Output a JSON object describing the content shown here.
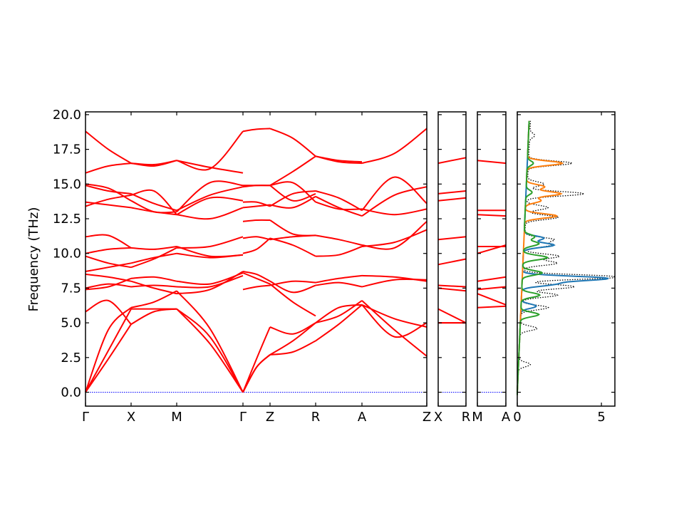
{
  "chart_data": [
    {
      "type": "line",
      "title": "",
      "ylabel": "Frequency (THz)",
      "ylim": [
        -1.0,
        20.2
      ],
      "yticks": [
        "0.0",
        "2.5",
        "5.0",
        "7.5",
        "10.0",
        "12.5",
        "15.0",
        "17.5",
        "20.0"
      ],
      "xticks": [
        "Γ",
        "X",
        "M",
        "Γ",
        "Z",
        "R",
        "A",
        "Z"
      ],
      "segments": [
        {
          "from": "Γ",
          "to": "X",
          "bands": [
            [
              0.0,
              2.4,
              4.9
            ],
            [
              0.0,
              3.0,
              6.0
            ],
            [
              0.0,
              4.5,
              6.1
            ],
            [
              5.8,
              6.6,
              4.9
            ],
            [
              7.5,
              7.8,
              7.6
            ],
            [
              7.4,
              7.6,
              8.2
            ],
            [
              8.5,
              8.3,
              8.0
            ],
            [
              8.7,
              9.0,
              9.3
            ],
            [
              9.8,
              9.3,
              9.0
            ],
            [
              10.0,
              10.3,
              10.4
            ],
            [
              11.2,
              11.3,
              10.4
            ],
            [
              13.4,
              13.9,
              14.2
            ],
            [
              13.7,
              13.5,
              13.3
            ],
            [
              14.9,
              14.5,
              14.3
            ],
            [
              15.0,
              14.7,
              13.8
            ],
            [
              15.8,
              16.3,
              16.5
            ],
            [
              18.8,
              17.5,
              16.5
            ]
          ]
        },
        {
          "from": "X",
          "to": "M",
          "bands": [
            [
              4.9,
              5.8,
              6.0
            ],
            [
              6.0,
              6.0,
              6.0
            ],
            [
              6.1,
              6.5,
              7.3
            ],
            [
              7.6,
              7.7,
              7.6
            ],
            [
              8.2,
              8.3,
              8.0
            ],
            [
              8.0,
              7.5,
              7.1
            ],
            [
              9.3,
              9.7,
              10.0
            ],
            [
              9.0,
              9.6,
              10.4
            ],
            [
              10.4,
              10.3,
              10.5
            ],
            [
              14.2,
              14.5,
              12.8
            ],
            [
              13.3,
              13.0,
              12.8
            ],
            [
              14.3,
              13.6,
              13.1
            ],
            [
              13.8,
              13.0,
              13.0
            ],
            [
              16.5,
              16.3,
              16.7
            ],
            [
              16.5,
              16.4,
              16.7
            ]
          ]
        },
        {
          "from": "M",
          "to": "Γ",
          "bands": [
            [
              6.0,
              4.0,
              0.0
            ],
            [
              6.0,
              3.5,
              0.0
            ],
            [
              7.3,
              4.6,
              0.0
            ],
            [
              7.6,
              7.6,
              8.4
            ],
            [
              8.0,
              7.8,
              8.6
            ],
            [
              7.1,
              7.4,
              8.7
            ],
            [
              10.0,
              9.7,
              9.9
            ],
            [
              10.4,
              10.5,
              11.2
            ],
            [
              10.5,
              9.8,
              9.9
            ],
            [
              12.8,
              12.5,
              13.3
            ],
            [
              12.8,
              14.0,
              13.8
            ],
            [
              13.1,
              14.2,
              14.8
            ],
            [
              13.0,
              15.1,
              14.9
            ],
            [
              16.7,
              16.2,
              15.8
            ],
            [
              16.7,
              16.1,
              18.8
            ]
          ]
        },
        {
          "from": "Γ",
          "to": "Z",
          "bands": [
            [
              0.0,
              2.4,
              4.7
            ],
            [
              0.0,
              1.8,
              2.7
            ],
            [
              0.0,
              1.8,
              2.7
            ],
            [
              7.4,
              7.6,
              7.7
            ],
            [
              8.6,
              8.2,
              7.8
            ],
            [
              8.7,
              8.5,
              8.0
            ],
            [
              10.0,
              10.3,
              11.1
            ],
            [
              11.1,
              11.2,
              11.0
            ],
            [
              12.3,
              12.4,
              12.4
            ],
            [
              13.3,
              13.4,
              13.5
            ],
            [
              13.7,
              13.7,
              13.4
            ],
            [
              14.8,
              14.9,
              14.9
            ],
            [
              14.9,
              14.9,
              14.9
            ],
            [
              18.8,
              18.95,
              19.0
            ]
          ]
        },
        {
          "from": "Z",
          "to": "R",
          "bands": [
            [
              4.7,
              4.2,
              5.0
            ],
            [
              2.7,
              3.7,
              5.0
            ],
            [
              2.7,
              2.9,
              3.7
            ],
            [
              7.7,
              8.0,
              7.9
            ],
            [
              7.8,
              6.5,
              5.5
            ],
            [
              8.0,
              7.2,
              7.7
            ],
            [
              11.1,
              10.6,
              9.8
            ],
            [
              11.0,
              11.2,
              11.3
            ],
            [
              12.4,
              11.4,
              11.3
            ],
            [
              13.5,
              13.3,
              14.1
            ],
            [
              13.4,
              14.3,
              14.5
            ],
            [
              14.9,
              15.1,
              13.7
            ],
            [
              14.9,
              13.8,
              14.3
            ],
            [
              19.0,
              18.3,
              17.0
            ],
            [
              14.9,
              15.9,
              17.0
            ]
          ]
        },
        {
          "from": "R",
          "to": "A",
          "bands": [
            [
              5.0,
              5.5,
              6.6
            ],
            [
              5.0,
              6.1,
              6.3
            ],
            [
              3.7,
              4.9,
              6.3
            ],
            [
              7.9,
              8.2,
              8.4
            ],
            [
              7.7,
              7.9,
              7.6
            ],
            [
              9.8,
              9.9,
              10.5
            ],
            [
              11.3,
              11.0,
              10.6
            ],
            [
              14.1,
              13.3,
              12.7
            ],
            [
              14.5,
              14.0,
              13.1
            ],
            [
              13.7,
              13.2,
              13.2
            ],
            [
              17.0,
              16.6,
              16.5
            ],
            [
              17.0,
              16.7,
              16.6
            ]
          ]
        },
        {
          "from": "A",
          "to": "Z",
          "bands": [
            [
              6.6,
              4.5,
              2.6
            ],
            [
              6.3,
              5.3,
              4.7
            ],
            [
              6.3,
              4.0,
              5.0
            ],
            [
              8.4,
              8.3,
              8.0
            ],
            [
              7.6,
              8.1,
              8.1
            ],
            [
              10.5,
              10.8,
              11.7
            ],
            [
              10.6,
              10.4,
              12.3
            ],
            [
              12.7,
              14.2,
              14.8
            ],
            [
              13.1,
              15.5,
              13.6
            ],
            [
              13.2,
              12.8,
              13.2
            ],
            [
              16.5,
              17.2,
              19.0
            ]
          ]
        }
      ]
    },
    {
      "type": "line",
      "xticks": [
        "X",
        "R"
      ],
      "ylim": [
        -1.0,
        20.2
      ],
      "bands": [
        [
          16.5,
          16.9
        ],
        [
          14.3,
          14.5
        ],
        [
          13.8,
          14.0
        ],
        [
          11.0,
          11.2
        ],
        [
          9.2,
          9.6
        ],
        [
          7.7,
          7.6
        ],
        [
          7.5,
          7.3
        ],
        [
          6.0,
          5.0
        ],
        [
          5.0,
          5.0
        ],
        [
          5.0,
          5.0
        ]
      ]
    },
    {
      "type": "line",
      "xticks": [
        "M",
        "A"
      ],
      "ylim": [
        -1.0,
        20.2
      ],
      "bands": [
        [
          16.7,
          16.5
        ],
        [
          13.1,
          13.1
        ],
        [
          12.8,
          12.7
        ],
        [
          10.5,
          10.5
        ],
        [
          10.0,
          10.6
        ],
        [
          8.0,
          8.3
        ],
        [
          7.4,
          7.6
        ],
        [
          7.1,
          6.3
        ],
        [
          6.1,
          6.2
        ]
      ]
    },
    {
      "type": "line",
      "xticks": [
        "0",
        "5"
      ],
      "xlim": [
        0,
        5.8
      ],
      "ylim": [
        -1.0,
        20.2
      ],
      "series": [
        {
          "color": "#000000",
          "style": "dotted",
          "peaks": [
            [
              2.0,
              0.7
            ],
            [
              4.6,
              1.0
            ],
            [
              6.1,
              1.6
            ],
            [
              7.0,
              2.1
            ],
            [
              7.6,
              3.1
            ],
            [
              8.3,
              5.8
            ],
            [
              9.3,
              2.0
            ],
            [
              9.8,
              2.1
            ],
            [
              10.6,
              1.5
            ],
            [
              11.0,
              1.7
            ],
            [
              12.6,
              1.9
            ],
            [
              13.3,
              1.3
            ],
            [
              14.3,
              3.4
            ],
            [
              15.0,
              1.0
            ],
            [
              16.5,
              2.6
            ],
            [
              18.5,
              0.3
            ]
          ]
        },
        {
          "color": "#1f77b4",
          "style": "solid",
          "peaks": [
            [
              6.2,
              1.0
            ],
            [
              7.8,
              2.1
            ],
            [
              8.2,
              5.6
            ],
            [
              10.6,
              2.0
            ],
            [
              11.1,
              1.3
            ]
          ]
        },
        {
          "color": "#ff7f0e",
          "style": "solid",
          "peaks": [
            [
              12.7,
              2.1
            ],
            [
              14.3,
              2.3
            ],
            [
              14.8,
              1.2
            ],
            [
              16.5,
              2.3
            ],
            [
              13.8,
              1.0
            ]
          ]
        },
        {
          "color": "#2ca02c",
          "style": "solid",
          "peaks": [
            [
              5.6,
              1.2
            ],
            [
              7.0,
              1.2
            ],
            [
              8.6,
              1.3
            ],
            [
              9.7,
              1.6
            ],
            [
              10.7,
              1.0
            ],
            [
              11.2,
              0.7
            ],
            [
              14.4,
              0.4
            ],
            [
              16.5,
              0.4
            ]
          ]
        }
      ]
    }
  ]
}
